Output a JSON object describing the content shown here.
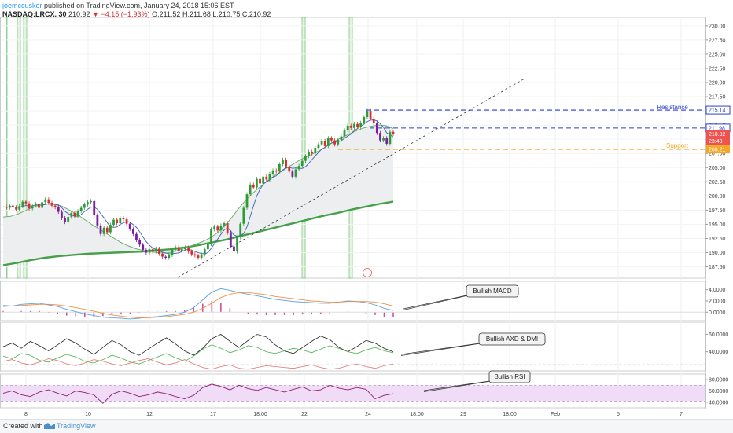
{
  "header": {
    "user": "joemccusker",
    "published_text": "published on TradingView.com, January 24, 2018 15:06 EST",
    "symbol": "NASDAQ:LRCX, 30",
    "last": "210.92",
    "change": "−4.15 (−1.93%)",
    "open": "O:211.52",
    "high": "H:211.68",
    "low": "L:210.75",
    "close": "C:210.92"
  },
  "footer": {
    "created_with": "Created with",
    "brand": "TradingView"
  },
  "colors": {
    "up": "#2e9b38",
    "down": "#d32f2f",
    "rsi_band": "#f0dcf7",
    "rsi_line": "#8e1e6f",
    "ma_slow": "#45a049",
    "ma_fast": "#3c5fb8",
    "ma_mid": "#6fb06b",
    "resistance": "#2f3fcf",
    "support": "#f5a623",
    "vline": "#6fbf6f",
    "macd_hist": "#d04fa0"
  },
  "chart_data": [
    {
      "type": "candlestick",
      "x_axis_labels": [
        "8",
        "10",
        "12",
        "17",
        "18:00",
        "22",
        "24",
        "18:00",
        "29",
        "18:00",
        "Feb",
        "5",
        "7"
      ],
      "y_axis_labels": [
        "230.00",
        "227.50",
        "225.00",
        "222.50",
        "220.00",
        "217.50",
        "215.00",
        "212.50",
        "210.00",
        "207.50",
        "205.00",
        "202.50",
        "200.00",
        "197.50",
        "195.00",
        "192.50",
        "190.00",
        "187.50"
      ],
      "ylim": [
        185.5,
        231.5
      ],
      "price_tags": [
        {
          "value": "215.14",
          "type": "resistance"
        },
        {
          "value": "211.98",
          "type": "resistance"
        },
        {
          "value": "210.92",
          "type": "last"
        },
        {
          "value": "23:43",
          "type": "timer"
        },
        {
          "value": "208.21",
          "type": "support"
        }
      ],
      "close_series": [
        198.1,
        197.9,
        198.3,
        198.0,
        197.6,
        198.2,
        199.0,
        198.7,
        197.8,
        198.3,
        198.6,
        197.9,
        198.9,
        199.4,
        198.8,
        198.3,
        198.0,
        197.2,
        196.1,
        195.4,
        196.3,
        197.0,
        196.4,
        197.3,
        197.9,
        198.5,
        198.9,
        199.1,
        196.6,
        194.8,
        193.3,
        194.4,
        193.6,
        194.9,
        195.8,
        195.2,
        196.1,
        195.9,
        195.1,
        194.2,
        193.3,
        192.2,
        191.4,
        190.5,
        190.0,
        190.6,
        190.2,
        190.7,
        189.8,
        189.3,
        189.1,
        189.6,
        190.5,
        191.0,
        190.3,
        190.6,
        190.9,
        190.2,
        189.7,
        189.5,
        189.1,
        189.7,
        190.6,
        191.5,
        194.1,
        194.6,
        193.9,
        194.8,
        195.2,
        193.5,
        191.1,
        190.2,
        192.7,
        195.1,
        197.9,
        200.3,
        202.0,
        201.5,
        203.0,
        202.2,
        203.4,
        202.9,
        203.9,
        204.5,
        204.3,
        205.6,
        206.4,
        205.2,
        204.3,
        203.4,
        204.7,
        205.3,
        206.2,
        207.0,
        207.8,
        207.5,
        208.5,
        209.1,
        209.7,
        208.8,
        210.2,
        209.8,
        209.1,
        209.9,
        210.5,
        211.6,
        212.4,
        212.0,
        212.7,
        212.1,
        212.9,
        213.9,
        215.0,
        213.6,
        212.9,
        211.1,
        209.8,
        210.2,
        209.2,
        211.3,
        210.92
      ],
      "ma_fast_series": [
        196.3,
        196.4,
        196.8,
        197.4,
        198.0,
        198.4,
        198.6,
        198.5,
        198.2,
        197.5,
        196.8,
        195.9,
        195.0,
        194.2,
        193.4,
        192.6,
        191.8,
        191.2,
        190.7,
        190.4,
        190.2,
        190.0,
        189.9,
        190.1,
        190.5,
        191.0,
        191.4,
        191.9,
        192.5,
        193.4,
        194.6,
        196.1,
        197.8,
        199.3,
        200.6,
        201.7,
        202.8,
        203.7,
        204.5,
        205.3,
        206.1,
        206.8,
        207.4,
        208.0,
        208.8,
        209.6,
        210.3,
        210.9,
        211.5,
        212.0,
        212.3,
        212.5,
        212.4,
        211.9
      ],
      "ma_slow_series": [
        187.8,
        188.2,
        188.7,
        189.1,
        189.4,
        189.6,
        189.8,
        189.9,
        190.0,
        190.1,
        190.2,
        190.4,
        190.6,
        190.9,
        191.3,
        191.8,
        192.3,
        192.9,
        193.5,
        194.1,
        194.7,
        195.3,
        195.9,
        196.5,
        197.0,
        197.6,
        198.1,
        198.6,
        199.0
      ]
    },
    {
      "type": "line",
      "name": "MACD",
      "y_axis_labels": [
        "4.0000",
        "2.0000",
        "0.0000"
      ],
      "ylim": [
        -1.5,
        5.5
      ],
      "macd_series": [
        1.2,
        1.1,
        1.4,
        1.5,
        1.6,
        1.3,
        1.0,
        0.5,
        0.1,
        -0.3,
        -0.6,
        -0.9,
        -1.0,
        -1.1,
        -1.2,
        -1.1,
        -0.9,
        -0.8,
        -0.6,
        -0.4,
        0.0,
        0.8,
        2.2,
        3.6,
        4.2,
        3.9,
        3.5,
        3.2,
        2.9,
        2.6,
        2.3,
        2.1,
        1.9,
        1.8,
        1.7,
        1.6,
        1.6,
        1.8,
        2.0,
        1.9,
        1.7,
        1.3,
        0.7,
        0.3
      ],
      "signal_series": [
        1.0,
        1.1,
        1.2,
        1.3,
        1.4,
        1.4,
        1.3,
        1.1,
        0.8,
        0.5,
        0.2,
        -0.2,
        -0.5,
        -0.7,
        -0.9,
        -1.0,
        -1.0,
        -0.9,
        -0.8,
        -0.6,
        -0.4,
        0.0,
        0.7,
        1.6,
        2.6,
        3.2,
        3.5,
        3.5,
        3.3,
        3.1,
        2.8,
        2.6,
        2.4,
        2.2,
        2.0,
        1.9,
        1.8,
        1.8,
        1.9,
        1.9,
        1.9,
        1.8,
        1.5,
        1.1
      ],
      "annotation": "Bullish MACD"
    },
    {
      "type": "line",
      "name": "ADX & DMI",
      "y_axis_labels": [
        "60.0000",
        "40.0000"
      ],
      "ylim": [
        18,
        74
      ],
      "adx_series": [
        46,
        50,
        44,
        52,
        47,
        41,
        48,
        55,
        50,
        43,
        37,
        45,
        53,
        48,
        40,
        36,
        43,
        50,
        56,
        49,
        41,
        36,
        44,
        55,
        60,
        52,
        45,
        53,
        60,
        57,
        48,
        41,
        38,
        45,
        52,
        58,
        54,
        45,
        40,
        46,
        53,
        50,
        44,
        40
      ],
      "plus_di_series": [
        35,
        32,
        38,
        36,
        30,
        28,
        33,
        37,
        34,
        29,
        27,
        31,
        36,
        33,
        28,
        26,
        30,
        34,
        38,
        33,
        29,
        35,
        43,
        48,
        44,
        39,
        42,
        47,
        45,
        40,
        38,
        41,
        44,
        42,
        39,
        43,
        47,
        44,
        40,
        38,
        42,
        45,
        41,
        39
      ],
      "minus_di_series": [
        29,
        31,
        27,
        25,
        28,
        32,
        30,
        26,
        24,
        27,
        31,
        29,
        26,
        24,
        27,
        30,
        32,
        28,
        25,
        27,
        31,
        26,
        22,
        20,
        23,
        25,
        21,
        20,
        22,
        24,
        23,
        22,
        21,
        23,
        25,
        22,
        20,
        21,
        24,
        26,
        23,
        21,
        24,
        26
      ],
      "annotation": "Bullish AXD & DMI"
    },
    {
      "type": "line",
      "name": "RSI",
      "y_axis_labels": [
        "80.0000",
        "60.0000",
        "40.0000"
      ],
      "ylim": [
        30,
        90
      ],
      "rsi_series": [
        56,
        60,
        53,
        50,
        58,
        62,
        56,
        51,
        60,
        57,
        53,
        38,
        54,
        60,
        56,
        50,
        53,
        58,
        55,
        50,
        46,
        52,
        66,
        72,
        68,
        62,
        70,
        64,
        61,
        66,
        62,
        58,
        63,
        67,
        60,
        62,
        70,
        65,
        62,
        66,
        63,
        46,
        52,
        55
      ],
      "annotation": "Bullish RSI"
    }
  ]
}
